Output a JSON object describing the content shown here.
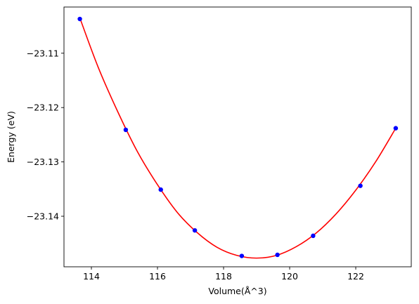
{
  "chart_data": {
    "type": "scatter",
    "title": "",
    "xlabel": "Volume(Å^3)",
    "ylabel": "Energy (eV)",
    "xlim": [
      113.17,
      123.68
    ],
    "ylim": [
      -23.1493,
      -23.1015
    ],
    "xticks": [
      114,
      116,
      118,
      120,
      122
    ],
    "yticks": [
      -23.11,
      -23.12,
      -23.13,
      -23.14
    ],
    "ytick_labels": [
      "−23.11",
      "−23.12",
      "−23.13",
      "−23.14"
    ],
    "grid": false,
    "series": [
      {
        "kind": "points",
        "color": "#0000ff",
        "x": [
          113.65,
          115.04,
          116.1,
          117.13,
          118.55,
          119.63,
          120.71,
          122.14,
          123.21
        ],
        "y": [
          -23.1037,
          -23.1241,
          -23.1351,
          -23.1426,
          -23.1473,
          -23.1471,
          -23.1436,
          -23.1344,
          -23.1238
        ]
      },
      {
        "kind": "fit-line",
        "color": "#ff0000",
        "x": [
          113.65,
          114.2,
          114.8,
          115.4,
          116.0,
          116.6,
          117.2,
          117.8,
          118.4,
          119.0,
          119.6,
          120.2,
          120.8,
          121.4,
          122.0,
          122.6,
          123.21
        ],
        "y": [
          -23.1035,
          -23.1125,
          -23.1208,
          -23.1282,
          -23.1342,
          -23.1393,
          -23.143,
          -23.1457,
          -23.1472,
          -23.1477,
          -23.1472,
          -23.1456,
          -23.1431,
          -23.1396,
          -23.1352,
          -23.13,
          -23.1238
        ]
      }
    ]
  }
}
